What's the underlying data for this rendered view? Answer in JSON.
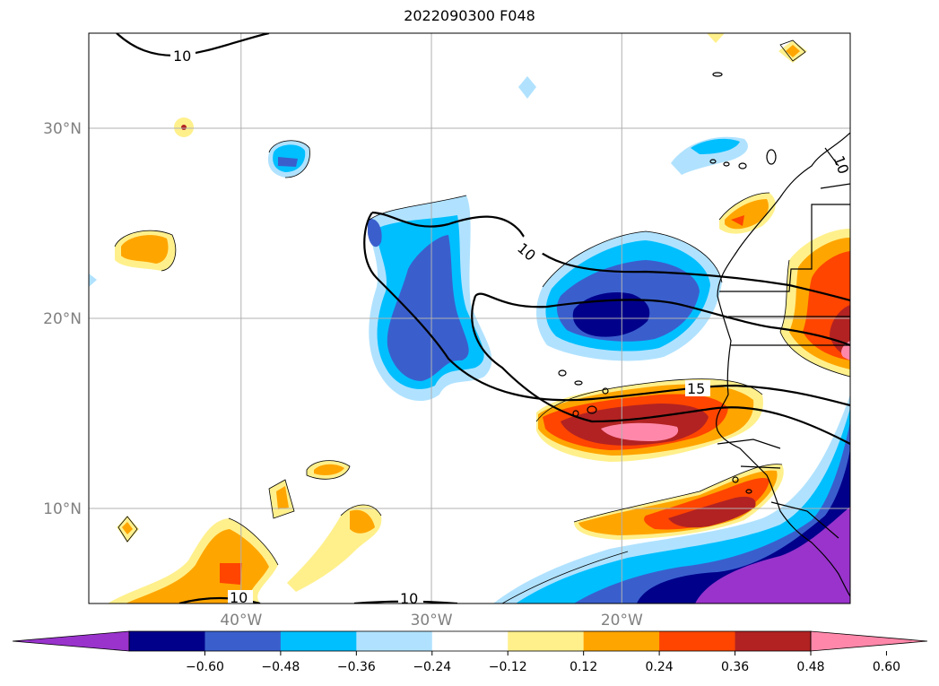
{
  "title": "2022090300 F048",
  "map": {
    "extent": {
      "lon_min": -48,
      "lon_max": -8,
      "lat_min": 5,
      "lat_max": 35
    },
    "lat_ticks": [
      {
        "value": 30,
        "label": "30°N"
      },
      {
        "value": 20,
        "label": "20°N"
      },
      {
        "value": 10,
        "label": "10°N"
      }
    ],
    "lon_ticks": [
      {
        "value": -40,
        "label": "40°W"
      },
      {
        "value": -30,
        "label": "30°W"
      },
      {
        "value": -20,
        "label": "20°W"
      }
    ],
    "gridlines": true,
    "contour_labels": [
      "10",
      "10",
      "15",
      "10",
      "10",
      "10"
    ]
  },
  "colorbar": {
    "ticks": [
      "−0.60",
      "−0.48",
      "−0.36",
      "−0.24",
      "−0.12",
      "0.12",
      "0.24",
      "0.36",
      "0.48",
      "0.60"
    ],
    "colors": [
      "#9933cc",
      "#00008b",
      "#3a5fcd",
      "#00bfff",
      "#b0e2ff",
      "#ffffff",
      "#fff08c",
      "#ffa500",
      "#ff4500",
      "#b22222",
      "#ff88aa"
    ],
    "extend": "both"
  }
}
